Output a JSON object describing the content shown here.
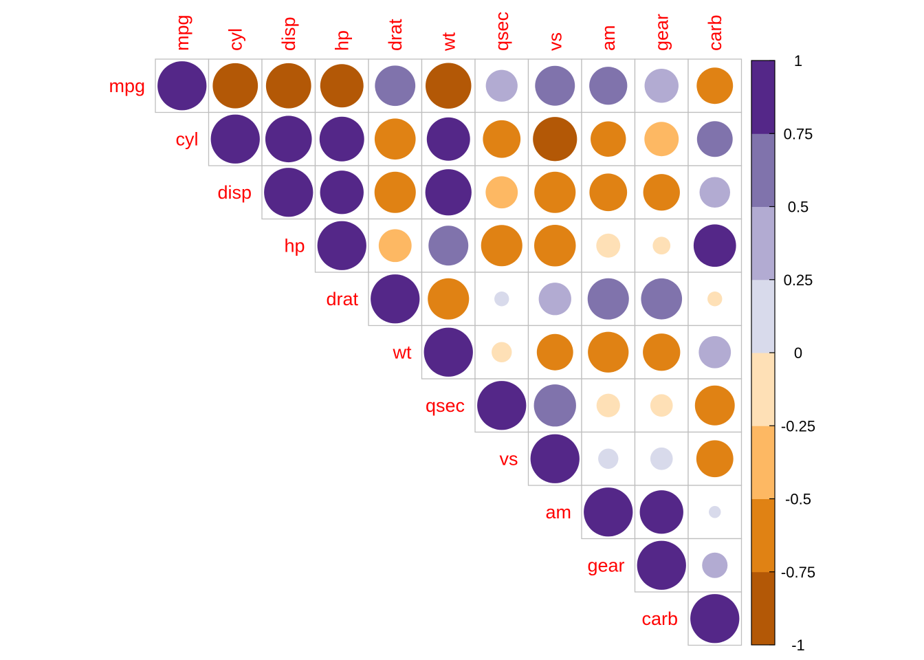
{
  "chart_data": {
    "type": "heatmap",
    "variables": [
      "mpg",
      "cyl",
      "disp",
      "hp",
      "drat",
      "wt",
      "qsec",
      "vs",
      "am",
      "gear",
      "carb"
    ],
    "matrix": [
      [
        1.0,
        -0.85,
        -0.85,
        -0.78,
        0.68,
        -0.87,
        0.42,
        0.66,
        0.6,
        0.48,
        -0.55
      ],
      [
        -0.85,
        1.0,
        0.9,
        0.83,
        -0.7,
        0.78,
        -0.59,
        -0.81,
        -0.52,
        -0.49,
        0.53
      ],
      [
        -0.85,
        0.9,
        1.0,
        0.79,
        -0.71,
        0.89,
        -0.43,
        -0.71,
        -0.59,
        -0.56,
        0.39
      ],
      [
        -0.78,
        0.83,
        0.79,
        1.0,
        -0.45,
        0.66,
        -0.71,
        -0.72,
        -0.24,
        -0.13,
        0.75
      ],
      [
        0.68,
        -0.7,
        -0.71,
        -0.45,
        1.0,
        -0.71,
        0.09,
        0.44,
        0.71,
        0.7,
        -0.09
      ],
      [
        -0.87,
        0.78,
        0.89,
        0.66,
        -0.71,
        1.0,
        -0.17,
        -0.55,
        -0.69,
        -0.58,
        0.43
      ],
      [
        0.42,
        -0.59,
        -0.43,
        -0.71,
        0.09,
        -0.17,
        1.0,
        0.74,
        -0.23,
        -0.21,
        -0.66
      ],
      [
        0.66,
        -0.81,
        -0.71,
        -0.72,
        0.44,
        -0.55,
        0.74,
        1.0,
        0.17,
        0.21,
        -0.57
      ],
      [
        0.6,
        -0.52,
        -0.59,
        -0.24,
        0.71,
        -0.69,
        -0.23,
        0.17,
        1.0,
        0.79,
        0.06
      ],
      [
        0.48,
        -0.49,
        -0.56,
        -0.13,
        0.7,
        -0.58,
        -0.21,
        0.21,
        0.79,
        1.0,
        0.27
      ],
      [
        -0.55,
        0.53,
        0.39,
        0.75,
        -0.09,
        0.43,
        -0.66,
        -0.57,
        0.06,
        0.27,
        1.0
      ]
    ],
    "layout": "upper-triangle",
    "method": "circle",
    "label_color": "#ff0000",
    "colorbar": {
      "range": [
        -1,
        1
      ],
      "ticks": [
        "1",
        "0.75",
        "0.5",
        "0.25",
        "0",
        "-0.25",
        "-0.5",
        "-0.75",
        "-1"
      ],
      "bins_low_to_high": [
        "#B35806",
        "#E08214",
        "#FDB863",
        "#FEE0B6",
        "#D8DAEB",
        "#B2ABD2",
        "#8073AC",
        "#542788"
      ]
    }
  }
}
